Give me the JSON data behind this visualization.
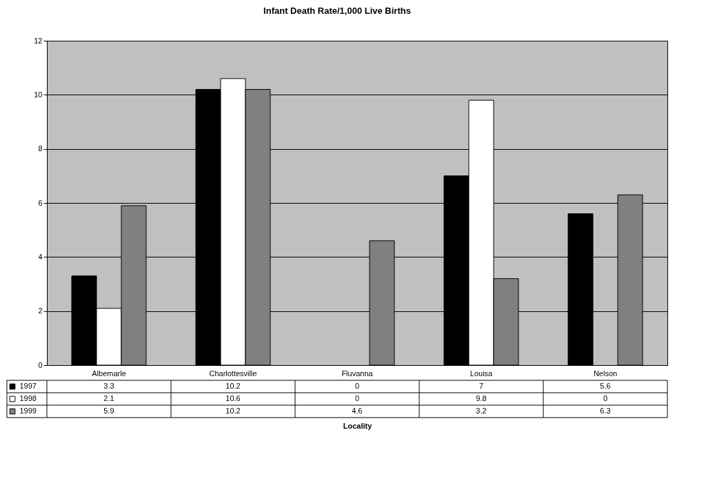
{
  "chart_data": {
    "type": "bar",
    "title": "Infant Death Rate/1,000 Live Births",
    "annotations": [
      "Locality"
    ],
    "categories": [
      "Albemarle",
      "Charlottesville",
      "Fluvanna",
      "Louisa",
      "Nelson"
    ],
    "series": [
      {
        "name": "1997",
        "color": "#000000",
        "values": [
          3.3,
          10.2,
          0,
          7,
          5.6
        ]
      },
      {
        "name": "1998",
        "color": "#ffffff",
        "values": [
          2.1,
          10.6,
          0,
          9.8,
          0
        ]
      },
      {
        "name": "1999",
        "color": "#808080",
        "values": [
          5.9,
          10.2,
          4.6,
          3.2,
          6.3
        ]
      }
    ],
    "ylim": [
      0,
      12
    ],
    "yticks": [
      0,
      2,
      4,
      6,
      8,
      10,
      12
    ],
    "grid": "y",
    "legend": "bottom left",
    "data_labels": true
  }
}
